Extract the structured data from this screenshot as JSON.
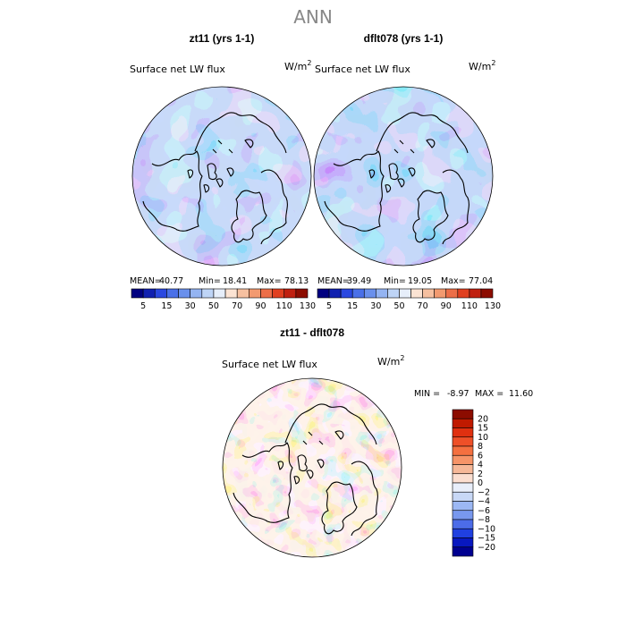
{
  "page": {
    "title": "ANN"
  },
  "chart_data": [
    {
      "type": "heatmap",
      "projection": "north polar stereographic",
      "title": "zt11 (yrs 1-1)",
      "variable": "Surface net LW flux",
      "units": "W/m",
      "units_exp": "2",
      "stats": {
        "mean_label": "MEAN=",
        "mean": "40.77",
        "min_label": "Min=",
        "min": "18.41",
        "max_label": "Max=",
        "max": "78.13"
      },
      "colorbar": {
        "orientation": "horizontal",
        "levels": [
          "5",
          "15",
          "30",
          "50",
          "70",
          "90",
          "110",
          "130"
        ],
        "colors": [
          "#000080",
          "#1020b0",
          "#2a48e0",
          "#4a70e8",
          "#6a90ec",
          "#94b4f2",
          "#bed4f6",
          "#e6eefa",
          "#fbe3d3",
          "#f6c0a0",
          "#f29a70",
          "#ec6e48",
          "#e04020",
          "#c02010",
          "#8c0c00"
        ]
      }
    },
    {
      "type": "heatmap",
      "projection": "north polar stereographic",
      "title": "dflt078 (yrs 1-1)",
      "variable": "Surface net LW flux",
      "units": "W/m",
      "units_exp": "2",
      "stats": {
        "mean_label": "MEAN=",
        "mean": "39.49",
        "min_label": "Min=",
        "min": "19.05",
        "max_label": "Max=",
        "max": "77.04"
      },
      "colorbar": {
        "orientation": "horizontal",
        "levels": [
          "5",
          "15",
          "30",
          "50",
          "70",
          "90",
          "110",
          "130"
        ],
        "colors": [
          "#000080",
          "#1020b0",
          "#2a48e0",
          "#4a70e8",
          "#6a90ec",
          "#94b4f2",
          "#bed4f6",
          "#e6eefa",
          "#fbe3d3",
          "#f6c0a0",
          "#f29a70",
          "#ec6e48",
          "#e04020",
          "#c02010",
          "#8c0c00"
        ]
      }
    },
    {
      "type": "heatmap",
      "projection": "north polar stereographic",
      "title": "zt11 - dflt078",
      "variable": "Surface net LW flux",
      "units": "W/m",
      "units_exp": "2",
      "stats": {
        "min_label": "MIN =",
        "min": "-8.97",
        "max_label": "MAX =",
        "max": "11.60"
      },
      "colorbar": {
        "orientation": "vertical",
        "levels": [
          "20",
          "15",
          "10",
          "8",
          "6",
          "4",
          "2",
          "0",
          "−2",
          "−4",
          "−6",
          "−8",
          "−10",
          "−15",
          "−20"
        ],
        "colors": [
          "#8c0c00",
          "#c01a00",
          "#e03010",
          "#ee5028",
          "#f47040",
          "#f69468",
          "#f6b898",
          "#fbded0",
          "#e8eefa",
          "#c8d8f6",
          "#9cb8f4",
          "#7898ee",
          "#4c6ce8",
          "#2040e0",
          "#0818c0",
          "#000090"
        ]
      }
    }
  ]
}
